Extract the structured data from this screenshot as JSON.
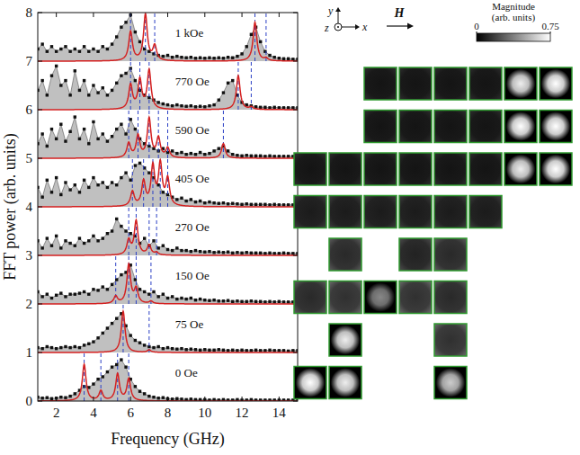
{
  "chart_data": {
    "type": "area",
    "x_label": "Frequency (GHz)",
    "y_label": "FFT power (arb. units)",
    "xlim": [
      1,
      15
    ],
    "xticks": [
      2,
      4,
      6,
      8,
      10,
      12,
      14
    ],
    "ylim": [
      0,
      8
    ],
    "yticks": [
      0,
      1,
      2,
      3,
      4,
      5,
      6,
      7,
      8
    ],
    "grid": false,
    "x": [
      1,
      1.25,
      1.5,
      1.75,
      2,
      2.25,
      2.5,
      2.75,
      3,
      3.25,
      3.5,
      3.75,
      4,
      4.25,
      4.5,
      4.75,
      5,
      5.25,
      5.5,
      5.75,
      6,
      6.25,
      6.5,
      6.75,
      7,
      7.25,
      7.5,
      7.75,
      8,
      8.25,
      8.5,
      8.75,
      9,
      9.25,
      9.5,
      9.75,
      10,
      10.25,
      10.5,
      10.75,
      11,
      11.25,
      11.5,
      11.75,
      12,
      12.25,
      12.5,
      12.75,
      13,
      13.25,
      13.5,
      13.75,
      14,
      14.25,
      14.5,
      14.75,
      15
    ],
    "series": [
      {
        "name": "0 Oe",
        "offset": 0,
        "color": "#c0c0c0",
        "marker": "square",
        "values": [
          0.08,
          0.06,
          0.07,
          0.05,
          0.06,
          0.08,
          0.07,
          0.1,
          0.15,
          0.22,
          0.3,
          0.28,
          0.35,
          0.45,
          0.5,
          0.6,
          0.7,
          0.75,
          0.85,
          0.7,
          0.45,
          0.3,
          0.2,
          0.15,
          0.1,
          0.08,
          0.06,
          0.07,
          0.05,
          0.04,
          0.05,
          0.04,
          0.03,
          0.04,
          0.03,
          0.03,
          0.03,
          0.02,
          0.03,
          0.02,
          0.03,
          0.02,
          0.02,
          0.03,
          0.02,
          0.02,
          0.03,
          0.02,
          0.02,
          0.02,
          0.02,
          0.02,
          0.02,
          0.02,
          0.02,
          0.02,
          0.02
        ],
        "fit_peaks": [
          3.5,
          4.4,
          5.3,
          5.9
        ],
        "fit_heights": [
          0.75,
          0.2,
          0.55,
          0.45
        ]
      },
      {
        "name": "75 Oe",
        "offset": 1,
        "color": "#c0c0c0",
        "marker": "square",
        "values": [
          0.1,
          0.08,
          0.12,
          0.1,
          0.08,
          0.1,
          0.12,
          0.1,
          0.12,
          0.1,
          0.15,
          0.18,
          0.22,
          0.3,
          0.4,
          0.5,
          0.6,
          0.7,
          0.8,
          0.55,
          0.35,
          0.25,
          0.2,
          0.15,
          0.12,
          0.1,
          0.12,
          0.08,
          0.1,
          0.08,
          0.07,
          0.08,
          0.06,
          0.07,
          0.06,
          0.05,
          0.06,
          0.05,
          0.05,
          0.06,
          0.05,
          0.04,
          0.05,
          0.04,
          0.05,
          0.04,
          0.04,
          0.05,
          0.04,
          0.04,
          0.05,
          0.04,
          0.04,
          0.04,
          0.03,
          0.04,
          0.04
        ],
        "fit_peaks": [
          5.6,
          7.0
        ],
        "fit_heights": [
          0.85,
          0.05
        ]
      },
      {
        "name": "150 Oe",
        "offset": 2,
        "color": "#c0c0c0",
        "marker": "square",
        "values": [
          0.25,
          0.15,
          0.2,
          0.12,
          0.18,
          0.22,
          0.15,
          0.2,
          0.2,
          0.22,
          0.25,
          0.2,
          0.3,
          0.28,
          0.35,
          0.3,
          0.4,
          0.5,
          0.6,
          0.65,
          0.8,
          0.5,
          0.3,
          0.25,
          0.2,
          0.25,
          0.15,
          0.2,
          0.12,
          0.15,
          0.1,
          0.12,
          0.1,
          0.12,
          0.08,
          0.1,
          0.08,
          0.07,
          0.08,
          0.06,
          0.06,
          0.07,
          0.05,
          0.06,
          0.05,
          0.05,
          0.06,
          0.05,
          0.05,
          0.04,
          0.05,
          0.04,
          0.05,
          0.04,
          0.04,
          0.04,
          0.04
        ],
        "fit_peaks": [
          5.2,
          5.9,
          6.3,
          7.1
        ],
        "fit_heights": [
          0.15,
          0.8,
          0.3,
          0.05
        ]
      },
      {
        "name": "270 Oe",
        "offset": 3,
        "color": "#c0c0c0",
        "marker": "square",
        "values": [
          0.3,
          0.15,
          0.35,
          0.2,
          0.4,
          0.15,
          0.3,
          0.25,
          0.2,
          0.35,
          0.25,
          0.3,
          0.4,
          0.3,
          0.35,
          0.45,
          0.5,
          0.75,
          0.6,
          0.5,
          0.45,
          0.4,
          0.25,
          0.35,
          0.2,
          0.3,
          0.15,
          0.2,
          0.12,
          0.1,
          0.15,
          0.1,
          0.1,
          0.08,
          0.1,
          0.08,
          0.07,
          0.08,
          0.06,
          0.07,
          0.06,
          0.07,
          0.05,
          0.06,
          0.05,
          0.06,
          0.05,
          0.05,
          0.05,
          0.04,
          0.05,
          0.04,
          0.04,
          0.05,
          0.04,
          0.04,
          0.04
        ],
        "fit_peaks": [
          5.9,
          6.3,
          7.0,
          7.4
        ],
        "fit_heights": [
          0.3,
          0.7,
          0.2,
          0.05
        ]
      },
      {
        "name": "405 Oe",
        "offset": 4,
        "color": "#c0c0c0",
        "marker": "square",
        "values": [
          0.4,
          0.2,
          0.55,
          0.3,
          0.6,
          0.25,
          0.5,
          0.35,
          0.45,
          0.3,
          0.55,
          0.4,
          0.6,
          0.45,
          0.5,
          0.4,
          0.5,
          0.45,
          0.6,
          0.7,
          0.55,
          0.85,
          0.9,
          0.8,
          0.7,
          0.6,
          0.45,
          0.3,
          0.25,
          0.2,
          0.15,
          0.18,
          0.12,
          0.15,
          0.1,
          0.12,
          0.08,
          0.1,
          0.08,
          0.07,
          0.08,
          0.06,
          0.07,
          0.06,
          0.05,
          0.06,
          0.05,
          0.05,
          0.05,
          0.05,
          0.04,
          0.05,
          0.04,
          0.04,
          0.04,
          0.04,
          0.04
        ],
        "fit_peaks": [
          6.1,
          6.7,
          7.2,
          7.6,
          8.0
        ],
        "fit_heights": [
          0.3,
          0.5,
          0.8,
          0.85,
          0.55
        ]
      },
      {
        "name": "590 Oe",
        "offset": 5,
        "color": "#c0c0c0",
        "marker": "square",
        "values": [
          0.3,
          0.5,
          0.25,
          0.6,
          0.4,
          0.7,
          0.35,
          0.55,
          0.85,
          0.4,
          0.6,
          0.3,
          0.75,
          0.4,
          0.5,
          0.35,
          0.45,
          0.6,
          0.7,
          0.5,
          0.8,
          0.6,
          0.4,
          0.3,
          0.25,
          0.2,
          0.15,
          0.2,
          0.12,
          0.15,
          0.1,
          0.12,
          0.08,
          0.1,
          0.08,
          0.12,
          0.08,
          0.1,
          0.15,
          0.2,
          0.25,
          0.15,
          0.08,
          0.06,
          0.05,
          0.06,
          0.05,
          0.05,
          0.05,
          0.04,
          0.05,
          0.04,
          0.04,
          0.04,
          0.04,
          0.04,
          0.04
        ],
        "fit_peaks": [
          5.9,
          6.4,
          7.0,
          7.5,
          8.0,
          11.0
        ],
        "fit_heights": [
          0.3,
          0.45,
          0.8,
          0.4,
          0.2,
          0.3
        ]
      },
      {
        "name": "770 Oe",
        "offset": 6,
        "color": "#c0c0c0",
        "marker": "square",
        "values": [
          0.4,
          0.6,
          0.3,
          0.7,
          0.9,
          0.5,
          0.6,
          0.3,
          0.8,
          0.4,
          0.6,
          0.3,
          0.5,
          0.35,
          0.45,
          0.3,
          0.4,
          0.55,
          0.7,
          0.75,
          0.85,
          0.6,
          0.4,
          0.3,
          0.25,
          0.2,
          0.15,
          0.12,
          0.1,
          0.08,
          0.1,
          0.08,
          0.07,
          0.08,
          0.06,
          0.07,
          0.06,
          0.08,
          0.1,
          0.2,
          0.35,
          0.55,
          0.6,
          0.3,
          0.15,
          0.1,
          0.08,
          0.06,
          0.05,
          0.05,
          0.04,
          0.05,
          0.04,
          0.04,
          0.04,
          0.04,
          0.04
        ],
        "fit_peaks": [
          6.0,
          6.5,
          7.0,
          11.8,
          12.5
        ],
        "fit_heights": [
          0.5,
          0.6,
          0.8,
          0.7,
          0.05
        ]
      },
      {
        "name": "1 kOe",
        "offset": 7,
        "color": "#c0c0c0",
        "marker": "square",
        "values": [
          0.25,
          0.35,
          0.2,
          0.3,
          0.2,
          0.25,
          0.3,
          0.2,
          0.25,
          0.2,
          0.3,
          0.2,
          0.25,
          0.2,
          0.3,
          0.25,
          0.35,
          0.5,
          0.7,
          0.8,
          0.95,
          0.6,
          0.4,
          0.25,
          0.2,
          0.15,
          0.12,
          0.1,
          0.12,
          0.08,
          0.1,
          0.08,
          0.07,
          0.08,
          0.06,
          0.07,
          0.06,
          0.07,
          0.06,
          0.07,
          0.06,
          0.08,
          0.07,
          0.1,
          0.15,
          0.3,
          0.55,
          0.7,
          0.4,
          0.2,
          0.12,
          0.08,
          0.06,
          0.05,
          0.05,
          0.04,
          0.04
        ],
        "fit_peaks": [
          6.0,
          6.8,
          7.3,
          12.7,
          13.3
        ],
        "fit_heights": [
          0.6,
          0.95,
          0.3,
          0.8,
          0.05
        ]
      }
    ],
    "mode_images": [
      [
        0.75,
        0.7,
        null,
        null,
        0.6,
        null,
        null,
        null
      ],
      [
        null,
        0.7,
        null,
        null,
        0.35,
        null,
        null,
        null
      ],
      [
        0.3,
        0.35,
        0.4,
        0.35,
        0.3,
        null,
        null,
        null
      ],
      [
        null,
        0.3,
        null,
        0.25,
        0.3,
        null,
        null,
        null
      ],
      [
        0.2,
        0.2,
        0.2,
        0.2,
        0.2,
        0.2,
        null,
        null
      ],
      [
        0.15,
        0.15,
        0.15,
        0.15,
        0.15,
        0.15,
        0.7,
        0.75
      ],
      [
        null,
        null,
        0.15,
        0.15,
        0.15,
        0.15,
        0.75,
        0.75
      ],
      [
        null,
        null,
        0.15,
        0.15,
        0.15,
        0.15,
        0.7,
        0.75
      ]
    ],
    "colorbar": {
      "title": [
        "Magnitude",
        "(arb. units)"
      ],
      "range": [
        0,
        0.75
      ],
      "ticks": [
        0,
        0.75
      ]
    },
    "annotations": {
      "x": "x",
      "y": "y",
      "z": "z",
      "field": "H"
    }
  }
}
